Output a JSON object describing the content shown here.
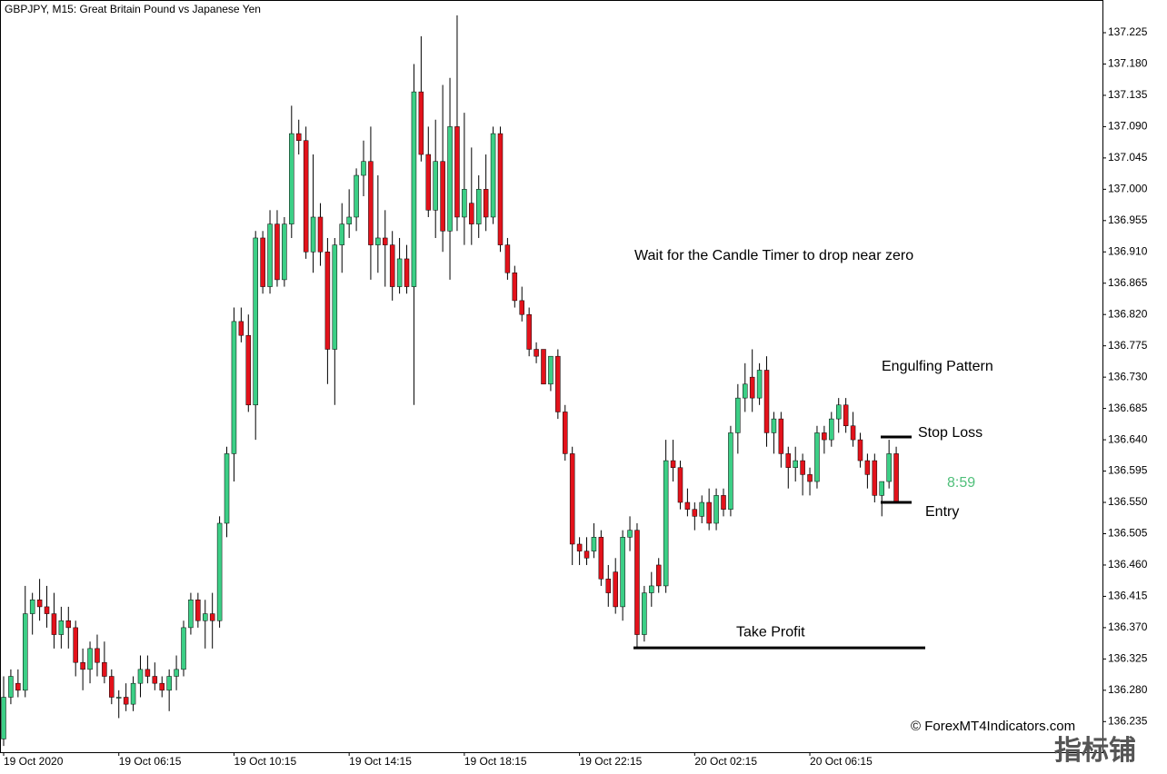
{
  "chart_data": {
    "type": "candlestick",
    "title": "GBPJPY, M15:  Great Britain Pound vs Japanese Yen",
    "x_labels": [
      {
        "index": 0,
        "label": "19 Oct 2020"
      },
      {
        "index": 16,
        "label": "19 Oct 06:15"
      },
      {
        "index": 32,
        "label": "19 Oct 10:15"
      },
      {
        "index": 48,
        "label": "19 Oct 14:15"
      },
      {
        "index": 64,
        "label": "19 Oct 18:15"
      },
      {
        "index": 80,
        "label": "19 Oct 22:15"
      },
      {
        "index": 96,
        "label": "20 Oct 02:15"
      },
      {
        "index": 112,
        "label": "20 Oct 06:15"
      }
    ],
    "open": [
      136.21,
      136.27,
      136.29,
      136.28,
      136.39,
      136.41,
      136.4,
      136.39,
      136.36,
      136.38,
      136.37,
      136.32,
      136.31,
      136.34,
      136.32,
      136.3,
      136.27,
      136.27,
      136.26,
      136.29,
      136.31,
      136.3,
      136.29,
      136.28,
      136.3,
      136.31,
      136.37,
      136.41,
      136.38,
      136.39,
      136.38,
      136.52,
      136.62,
      136.81,
      136.79,
      136.69,
      136.93,
      136.86,
      136.95,
      136.87,
      136.95,
      137.08,
      137.07,
      136.91,
      136.96,
      136.91,
      136.77,
      136.92,
      136.95,
      136.96,
      137.02,
      137.04,
      136.92,
      136.93,
      136.92,
      136.86,
      136.9,
      136.86,
      137.14,
      137.05,
      136.97,
      137.04,
      136.94,
      137.09,
      136.96,
      136.98,
      136.95,
      137.0,
      136.96,
      137.08,
      136.92,
      136.88,
      136.84,
      136.82,
      136.77,
      136.77,
      136.72,
      136.76,
      136.68,
      136.62,
      136.49,
      136.48,
      136.48,
      136.5,
      136.44,
      136.45,
      136.4,
      136.5,
      136.51,
      136.36,
      136.42,
      136.46,
      136.43,
      136.61,
      136.6,
      136.55,
      136.54,
      136.53,
      136.55,
      136.52,
      136.56,
      136.54,
      136.65,
      136.7,
      136.73,
      136.7,
      136.74,
      136.65,
      136.67,
      136.62,
      136.6,
      136.61,
      136.59,
      136.58,
      136.65,
      136.64,
      136.67,
      136.69,
      136.66,
      136.64,
      136.61,
      136.61,
      136.56,
      136.58,
      136.62
    ],
    "high": [
      136.3,
      136.31,
      136.31,
      136.43,
      136.42,
      136.44,
      136.43,
      136.42,
      136.4,
      136.4,
      136.38,
      136.34,
      136.35,
      136.36,
      136.35,
      136.31,
      136.28,
      136.29,
      136.3,
      136.33,
      136.33,
      136.32,
      136.3,
      136.31,
      136.33,
      136.38,
      136.42,
      136.42,
      136.41,
      136.42,
      136.53,
      136.63,
      136.83,
      136.83,
      136.82,
      136.94,
      136.94,
      136.97,
      136.97,
      136.96,
      137.12,
      137.1,
      137.09,
      137.05,
      136.98,
      136.93,
      136.93,
      136.98,
      137.0,
      137.03,
      137.07,
      137.09,
      137.02,
      136.97,
      136.94,
      136.93,
      136.92,
      137.18,
      137.22,
      137.09,
      137.1,
      137.15,
      137.16,
      137.25,
      137.11,
      137.06,
      137.02,
      137.05,
      137.09,
      137.09,
      136.93,
      136.89,
      136.86,
      136.83,
      136.78,
      136.77,
      136.76,
      136.77,
      136.69,
      136.63,
      136.5,
      136.5,
      136.52,
      136.51,
      136.46,
      136.47,
      136.51,
      136.53,
      136.52,
      136.43,
      136.45,
      136.47,
      136.64,
      136.64,
      136.61,
      136.57,
      136.55,
      136.56,
      136.57,
      136.57,
      136.57,
      136.66,
      136.72,
      136.75,
      136.77,
      136.75,
      136.76,
      136.68,
      136.68,
      136.63,
      136.63,
      136.62,
      136.6,
      136.66,
      136.66,
      136.68,
      136.7,
      136.7,
      136.68,
      136.65,
      136.62,
      136.62,
      136.58,
      136.64,
      136.63
    ],
    "low": [
      136.2,
      136.26,
      136.27,
      136.27,
      136.36,
      136.38,
      136.37,
      136.34,
      136.34,
      136.34,
      136.3,
      136.28,
      136.29,
      136.3,
      136.29,
      136.26,
      136.24,
      136.25,
      136.25,
      136.27,
      136.29,
      136.28,
      136.27,
      136.25,
      136.28,
      136.3,
      136.36,
      136.37,
      136.34,
      136.34,
      136.37,
      136.5,
      136.58,
      136.78,
      136.68,
      136.64,
      136.85,
      136.85,
      136.86,
      136.86,
      136.93,
      137.05,
      136.9,
      136.88,
      136.89,
      136.72,
      136.69,
      136.88,
      136.93,
      136.94,
      136.99,
      136.87,
      136.88,
      136.86,
      136.84,
      136.85,
      136.85,
      136.69,
      137.04,
      136.96,
      136.93,
      136.91,
      136.87,
      136.94,
      136.92,
      136.92,
      136.93,
      136.94,
      136.95,
      136.91,
      136.87,
      136.83,
      136.81,
      136.76,
      136.75,
      136.72,
      136.71,
      136.67,
      136.61,
      136.46,
      136.46,
      136.46,
      136.47,
      136.43,
      136.4,
      136.39,
      136.38,
      136.48,
      136.34,
      136.35,
      136.4,
      136.42,
      136.42,
      136.58,
      136.54,
      136.53,
      136.51,
      136.52,
      136.51,
      136.51,
      136.53,
      136.53,
      136.62,
      136.68,
      136.68,
      136.69,
      136.63,
      136.62,
      136.6,
      136.57,
      136.58,
      136.56,
      136.56,
      136.57,
      136.62,
      136.63,
      136.65,
      136.65,
      136.63,
      136.6,
      136.57,
      136.55,
      136.53,
      136.57,
      136.55
    ],
    "close": [
      136.27,
      136.3,
      136.28,
      136.39,
      136.41,
      136.4,
      136.39,
      136.36,
      136.38,
      136.37,
      136.32,
      136.31,
      136.34,
      136.32,
      136.3,
      136.27,
      136.27,
      136.26,
      136.29,
      136.31,
      136.3,
      136.29,
      136.28,
      136.3,
      136.31,
      136.37,
      136.41,
      136.38,
      136.39,
      136.38,
      136.52,
      136.62,
      136.81,
      136.79,
      136.69,
      136.93,
      136.86,
      136.95,
      136.87,
      136.95,
      137.08,
      137.07,
      136.91,
      136.96,
      136.91,
      136.77,
      136.92,
      136.95,
      136.96,
      137.02,
      137.04,
      136.92,
      136.93,
      136.92,
      136.86,
      136.9,
      136.86,
      137.14,
      137.05,
      136.97,
      137.04,
      136.94,
      137.09,
      136.96,
      137.0,
      136.95,
      137.0,
      136.96,
      137.08,
      136.92,
      136.88,
      136.84,
      136.82,
      136.77,
      136.76,
      136.72,
      136.76,
      136.68,
      136.62,
      136.49,
      136.48,
      136.47,
      136.5,
      136.44,
      136.42,
      136.4,
      136.5,
      136.51,
      136.36,
      136.42,
      136.43,
      136.43,
      136.61,
      136.6,
      136.55,
      136.54,
      136.53,
      136.55,
      136.52,
      136.56,
      136.54,
      136.65,
      136.7,
      136.72,
      136.7,
      136.74,
      136.65,
      136.67,
      136.62,
      136.6,
      136.61,
      136.59,
      136.58,
      136.65,
      136.64,
      136.67,
      136.69,
      136.66,
      136.64,
      136.61,
      136.59,
      136.56,
      136.58,
      136.62,
      136.55
    ],
    "up_color": "#3ccf86",
    "down_color": "#e3121b",
    "ylim": [
      136.191,
      137.272
    ],
    "yticks": [
      137.225,
      {
        "value": 137.18,
        "label": "137.180"
      },
      137.135,
      {
        "value": 137.09,
        "label": "137.090"
      },
      137.045,
      {
        "value": 137.0,
        "label": "137.000"
      },
      136.955,
      {
        "value": 136.91,
        "label": "136.910"
      },
      136.865,
      {
        "value": 136.82,
        "label": "136.820"
      },
      136.775,
      {
        "value": 136.73,
        "label": "136.730"
      },
      136.685,
      {
        "value": 136.64,
        "label": "136.640"
      },
      136.595,
      {
        "value": 136.55,
        "label": "136.550"
      },
      136.505,
      {
        "value": 136.46,
        "label": "136.460"
      },
      136.415,
      {
        "value": 136.37,
        "label": "136.370"
      },
      136.325,
      {
        "value": 136.28,
        "label": "136.280"
      },
      136.235
    ],
    "levels": [
      {
        "label": "Take Profit",
        "value": 136.341
      },
      {
        "label": "Stop Loss",
        "value": 136.644
      },
      {
        "label": "Entry",
        "value": 136.55
      }
    ],
    "annotations": [
      "Wait for the Candle Timer to drop near zero",
      "Engulfing Pattern"
    ],
    "timer": "8:59",
    "timer_color": "#4fbf7a",
    "watermark": "© ForexMT4Indicators.com",
    "corner_mark": "指标铺"
  }
}
